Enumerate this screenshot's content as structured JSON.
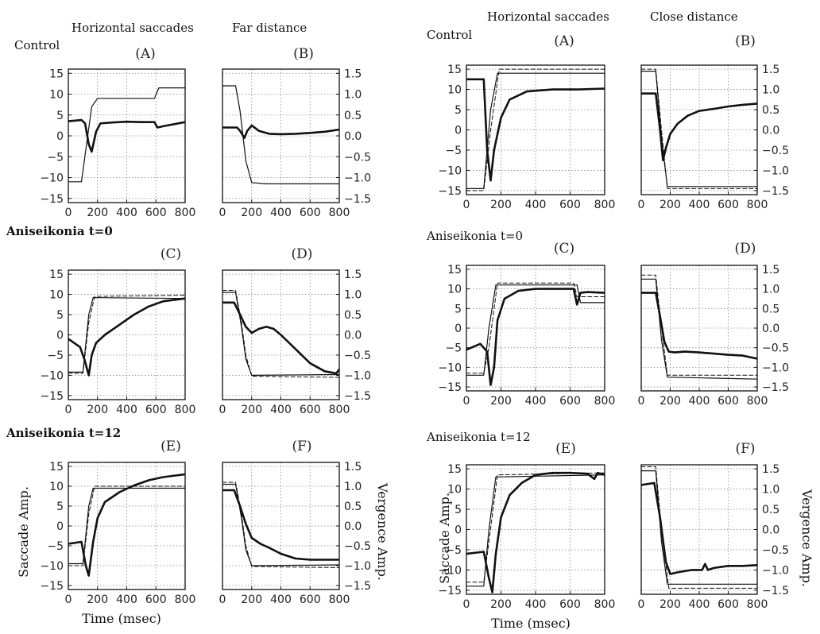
{
  "headers": {
    "left_sacc": "Horizontal saccades",
    "left_dist": "Far distance",
    "right_sacc": "Horizontal saccades",
    "right_dist": "Close distance"
  },
  "rows": [
    {
      "label": "Control",
      "bold": false
    },
    {
      "label": "Aniseikonia t=0",
      "bold": true
    },
    {
      "label": "Aniseikonia t=12",
      "bold": true
    }
  ],
  "ylabels": {
    "saccade": "Saccade Amp.",
    "vergence": "Vergence Amp."
  },
  "xlabel": "Time (msec)",
  "xlabel_right": "Time  (msec)",
  "chart_data": [
    {
      "id": "L-A",
      "label": "(A)",
      "type": "line",
      "xlim": [
        0,
        800
      ],
      "ylim": [
        -16,
        16
      ],
      "xticks": [
        "0",
        "200",
        "400",
        "600",
        "800"
      ],
      "yticks": [
        "15",
        "10",
        "5",
        "0",
        "-5",
        "-10",
        "-15"
      ],
      "series": [
        {
          "style": "thin",
          "x": [
            0,
            90,
            160,
            200,
            590,
            620,
            800
          ],
          "y": [
            -11,
            -11,
            7,
            9,
            9,
            11.5,
            11.5
          ]
        },
        {
          "style": "thick",
          "x": [
            0,
            90,
            115,
            140,
            160,
            190,
            220,
            300,
            400,
            500,
            590,
            610,
            650,
            800
          ],
          "y": [
            3.5,
            3.8,
            3,
            -2,
            -3.8,
            1,
            3,
            3.2,
            3.4,
            3.3,
            3.3,
            2,
            2.3,
            3.3
          ]
        }
      ]
    },
    {
      "id": "L-B",
      "label": "(B)",
      "type": "line",
      "xlim": [
        0,
        800
      ],
      "ylim": [
        -1.6,
        1.6
      ],
      "xticks": [
        "0",
        "200",
        "400",
        "600",
        "800"
      ],
      "yticks": [
        "1.5",
        "1.0",
        "0.5",
        "0.0",
        "-0.5",
        "-1.0",
        "-1.5"
      ],
      "series": [
        {
          "style": "thin",
          "x": [
            0,
            90,
            120,
            160,
            200,
            300,
            800
          ],
          "y": [
            1.2,
            1.2,
            0.6,
            -0.6,
            -1.12,
            -1.15,
            -1.15
          ]
        },
        {
          "style": "thick",
          "x": [
            0,
            100,
            120,
            150,
            170,
            200,
            250,
            320,
            400,
            500,
            600,
            700,
            800
          ],
          "y": [
            0.2,
            0.2,
            0.12,
            -0.05,
            0.12,
            0.25,
            0.12,
            0.05,
            0.04,
            0.05,
            0.07,
            0.1,
            0.15
          ]
        }
      ]
    },
    {
      "id": "L-C",
      "label": "(C)",
      "type": "line",
      "xlim": [
        0,
        800
      ],
      "ylim": [
        -16,
        16
      ],
      "xticks": [
        "0",
        "200",
        "400",
        "600",
        "800"
      ],
      "yticks": [
        "15",
        "10",
        "5",
        "0",
        "-5",
        "-10",
        "-15"
      ],
      "series": [
        {
          "style": "dashed",
          "x": [
            0,
            100,
            140,
            180,
            800
          ],
          "y": [
            -9.5,
            -9.5,
            3,
            9.5,
            9.8
          ]
        },
        {
          "style": "thin",
          "x": [
            0,
            100,
            140,
            170,
            800
          ],
          "y": [
            -9.2,
            -9.2,
            5,
            9.2,
            9
          ]
        },
        {
          "style": "thick",
          "x": [
            0,
            80,
            110,
            140,
            160,
            190,
            250,
            350,
            450,
            550,
            650,
            800
          ],
          "y": [
            -1,
            -3,
            -6,
            -10,
            -5,
            -2,
            0,
            2.5,
            5,
            7,
            8.3,
            9
          ]
        }
      ]
    },
    {
      "id": "L-D",
      "label": "(D)",
      "type": "line",
      "xlim": [
        0,
        800
      ],
      "ylim": [
        -1.6,
        1.6
      ],
      "xticks": [
        "0",
        "200",
        "400",
        "600",
        "800"
      ],
      "yticks": [
        "1.5",
        "1.0",
        "0.5",
        "0.0",
        "-0.5",
        "-1.0",
        "-1.5"
      ],
      "series": [
        {
          "style": "dashed",
          "x": [
            0,
            90,
            130,
            160,
            200,
            800
          ],
          "y": [
            1.1,
            1.1,
            0.3,
            -0.5,
            -1.02,
            -1.05
          ]
        },
        {
          "style": "thin",
          "x": [
            0,
            90,
            130,
            160,
            200,
            800
          ],
          "y": [
            1.05,
            1.05,
            0.2,
            -0.6,
            -1,
            -0.98
          ]
        },
        {
          "style": "thick",
          "x": [
            0,
            80,
            120,
            160,
            200,
            250,
            300,
            350,
            400,
            500,
            600,
            700,
            780,
            800
          ],
          "y": [
            0.8,
            0.8,
            0.5,
            0.2,
            0.05,
            0.15,
            0.2,
            0.15,
            0.0,
            -0.35,
            -0.7,
            -0.9,
            -0.95,
            -0.85
          ]
        }
      ]
    },
    {
      "id": "L-E",
      "label": "(E)",
      "type": "line",
      "xlim": [
        0,
        800
      ],
      "ylim": [
        -16,
        16
      ],
      "xticks": [
        "0",
        "200",
        "400",
        "600",
        "800"
      ],
      "yticks": [
        "15",
        "10",
        "5",
        "0",
        "-5",
        "-10",
        "-15"
      ],
      "series": [
        {
          "style": "dashed",
          "x": [
            0,
            100,
            140,
            180,
            800
          ],
          "y": [
            -10,
            -10,
            3,
            10,
            10
          ]
        },
        {
          "style": "thin",
          "x": [
            0,
            100,
            140,
            170,
            800
          ],
          "y": [
            -9.5,
            -9.5,
            5,
            9.5,
            9.5
          ]
        },
        {
          "style": "thick",
          "x": [
            0,
            90,
            120,
            140,
            170,
            200,
            250,
            350,
            450,
            550,
            650,
            800
          ],
          "y": [
            -4.5,
            -4,
            -10,
            -12.5,
            -4,
            2,
            6,
            8.5,
            10.2,
            11.5,
            12.3,
            13
          ]
        }
      ]
    },
    {
      "id": "L-F",
      "label": "(F)",
      "type": "line",
      "xlim": [
        0,
        800
      ],
      "ylim": [
        -1.6,
        1.6
      ],
      "xticks": [
        "0",
        "200",
        "400",
        "600",
        "800"
      ],
      "yticks": [
        "1.5",
        "1.0",
        "0.5",
        "0.0",
        "-0.5",
        "-1.0",
        "-1.5"
      ],
      "series": [
        {
          "style": "dashed",
          "x": [
            0,
            90,
            130,
            160,
            200,
            800
          ],
          "y": [
            1.1,
            1.1,
            0.3,
            -0.5,
            -1.02,
            -1.05
          ]
        },
        {
          "style": "thin",
          "x": [
            0,
            90,
            130,
            160,
            200,
            800
          ],
          "y": [
            1.05,
            1.05,
            0.2,
            -0.6,
            -1,
            -0.98
          ]
        },
        {
          "style": "thick",
          "x": [
            0,
            80,
            120,
            160,
            200,
            260,
            320,
            400,
            500,
            600,
            700,
            800
          ],
          "y": [
            0.9,
            0.9,
            0.5,
            0.05,
            -0.3,
            -0.45,
            -0.55,
            -0.7,
            -0.82,
            -0.85,
            -0.85,
            -0.85
          ]
        }
      ]
    },
    {
      "id": "R-A",
      "label": "(A)",
      "type": "line",
      "xlim": [
        0,
        800
      ],
      "ylim": [
        -16,
        16
      ],
      "xticks": [
        "0",
        "200",
        "400",
        "600",
        "800"
      ],
      "yticks": [
        "15",
        "10",
        "5",
        "0",
        "-5",
        "-10",
        "-15"
      ],
      "series": [
        {
          "style": "dashed",
          "x": [
            0,
            100,
            140,
            190,
            800
          ],
          "y": [
            -15,
            -15,
            0,
            15,
            15
          ]
        },
        {
          "style": "thin",
          "x": [
            0,
            100,
            140,
            180,
            800
          ],
          "y": [
            -14.5,
            -14.5,
            5,
            14,
            14
          ]
        },
        {
          "style": "thick",
          "x": [
            0,
            100,
            120,
            140,
            160,
            200,
            250,
            350,
            500,
            650,
            800
          ],
          "y": [
            12.5,
            12.5,
            -5,
            -12.5,
            -5,
            3,
            7.5,
            9.5,
            10,
            10,
            10.2
          ]
        }
      ]
    },
    {
      "id": "R-B",
      "label": "(B)",
      "type": "line",
      "xlim": [
        0,
        800
      ],
      "ylim": [
        -1.6,
        1.6
      ],
      "xticks": [
        "0",
        "200",
        "400",
        "600",
        "800"
      ],
      "yticks": [
        "1.5",
        "1.0",
        "0.5",
        "0.0",
        "-0.5",
        "-1.0",
        "-1.5"
      ],
      "series": [
        {
          "style": "dashed",
          "x": [
            0,
            100,
            140,
            180,
            800
          ],
          "y": [
            1.5,
            1.5,
            0,
            -1.45,
            -1.45
          ]
        },
        {
          "style": "thin",
          "x": [
            0,
            100,
            140,
            180,
            800
          ],
          "y": [
            1.45,
            1.45,
            -0.2,
            -1.4,
            -1.4
          ]
        },
        {
          "style": "thick",
          "x": [
            0,
            100,
            130,
            150,
            170,
            200,
            250,
            320,
            400,
            500,
            600,
            700,
            800
          ],
          "y": [
            0.9,
            0.9,
            0,
            -0.75,
            -0.45,
            -0.1,
            0.15,
            0.35,
            0.47,
            0.52,
            0.58,
            0.62,
            0.65
          ]
        }
      ]
    },
    {
      "id": "R-C",
      "label": "(C)",
      "type": "line",
      "xlim": [
        0,
        800
      ],
      "ylim": [
        -16,
        16
      ],
      "xticks": [
        "0",
        "200",
        "400",
        "600",
        "800"
      ],
      "yticks": [
        "15",
        "10",
        "5",
        "0",
        "-5",
        "-10",
        "-15"
      ],
      "series": [
        {
          "style": "dashed",
          "x": [
            0,
            100,
            130,
            180,
            620,
            640,
            800
          ],
          "y": [
            -11.5,
            -11.5,
            -5,
            11.5,
            11.5,
            8,
            8
          ]
        },
        {
          "style": "thin",
          "x": [
            0,
            100,
            130,
            170,
            640,
            660,
            800
          ],
          "y": [
            -12,
            -12,
            0,
            11,
            11,
            6.5,
            6.5
          ]
        },
        {
          "style": "thick",
          "x": [
            0,
            80,
            120,
            140,
            160,
            180,
            220,
            300,
            400,
            500,
            620,
            640,
            660,
            700,
            800
          ],
          "y": [
            -5.5,
            -4,
            -6,
            -14.5,
            -10,
            2,
            7.5,
            9.5,
            10,
            10,
            10,
            6,
            9,
            9.2,
            9
          ]
        }
      ]
    },
    {
      "id": "R-D",
      "label": "(D)",
      "type": "line",
      "xlim": [
        0,
        800
      ],
      "ylim": [
        -1.6,
        1.6
      ],
      "xticks": [
        "0",
        "200",
        "400",
        "600",
        "800"
      ],
      "yticks": [
        "1.5",
        "1.0",
        "0.5",
        "0.0",
        "-0.5",
        "-1.0",
        "-1.5"
      ],
      "series": [
        {
          "style": "dashed",
          "x": [
            0,
            100,
            140,
            180,
            800
          ],
          "y": [
            1.35,
            1.35,
            0,
            -1.2,
            -1.2
          ]
        },
        {
          "style": "thin",
          "x": [
            0,
            100,
            140,
            180,
            800
          ],
          "y": [
            1.25,
            1.25,
            -0.3,
            -1.25,
            -1.3
          ]
        },
        {
          "style": "thick",
          "x": [
            0,
            100,
            130,
            160,
            190,
            230,
            300,
            400,
            500,
            600,
            700,
            800
          ],
          "y": [
            0.9,
            0.9,
            0.3,
            -0.35,
            -0.6,
            -0.62,
            -0.6,
            -0.62,
            -0.65,
            -0.68,
            -0.7,
            -0.78
          ]
        }
      ]
    },
    {
      "id": "R-E",
      "label": "(E)",
      "type": "line",
      "xlim": [
        0,
        800
      ],
      "ylim": [
        -16,
        16
      ],
      "xticks": [
        "0",
        "200",
        "400",
        "600",
        "800"
      ],
      "yticks": [
        "15",
        "10",
        "5",
        "0",
        "-5",
        "-10",
        "-15"
      ],
      "series": [
        {
          "style": "dashed",
          "x": [
            0,
            100,
            130,
            180,
            800
          ],
          "y": [
            -13,
            -13,
            -3,
            13.5,
            14
          ]
        },
        {
          "style": "thin",
          "x": [
            0,
            100,
            130,
            170,
            800
          ],
          "y": [
            -14,
            -14,
            0,
            13,
            13.5
          ]
        },
        {
          "style": "thick",
          "x": [
            0,
            100,
            130,
            150,
            170,
            200,
            250,
            320,
            400,
            500,
            600,
            700,
            740,
            760,
            800
          ],
          "y": [
            -6,
            -5.5,
            -12,
            -15.5,
            -6,
            3,
            8.5,
            11.5,
            13.5,
            14,
            14,
            13.8,
            12.5,
            14,
            13.5
          ]
        }
      ]
    },
    {
      "id": "R-F",
      "label": "(F)",
      "type": "line",
      "xlim": [
        0,
        800
      ],
      "ylim": [
        -1.6,
        1.6
      ],
      "xticks": [
        "0",
        "200",
        "400",
        "600",
        "800"
      ],
      "yticks": [
        "1.5",
        "1.0",
        "0.5",
        "0.0",
        "-0.5",
        "-1.0",
        "-1.5"
      ],
      "series": [
        {
          "style": "dashed",
          "x": [
            0,
            100,
            140,
            190,
            800
          ],
          "y": [
            1.55,
            1.55,
            0,
            -1.45,
            -1.45
          ]
        },
        {
          "style": "thin",
          "x": [
            0,
            100,
            140,
            180,
            800
          ],
          "y": [
            1.45,
            1.45,
            -0.3,
            -1.35,
            -1.35
          ]
        },
        {
          "style": "thick",
          "x": [
            0,
            90,
            130,
            170,
            200,
            260,
            350,
            420,
            440,
            460,
            500,
            600,
            700,
            800
          ],
          "y": [
            1.1,
            1.15,
            0.3,
            -0.8,
            -1.1,
            -1.05,
            -1.0,
            -1.0,
            -0.85,
            -1.0,
            -0.95,
            -0.9,
            -0.9,
            -0.88
          ]
        }
      ]
    }
  ]
}
